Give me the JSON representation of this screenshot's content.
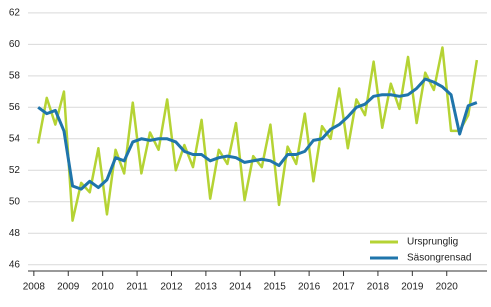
{
  "chart_data": {
    "type": "line",
    "x": [
      2008.125,
      2008.375,
      2008.625,
      2008.875,
      2009.125,
      2009.375,
      2009.625,
      2009.875,
      2010.125,
      2010.375,
      2010.625,
      2010.875,
      2011.125,
      2011.375,
      2011.625,
      2011.875,
      2012.125,
      2012.375,
      2012.625,
      2012.875,
      2013.125,
      2013.375,
      2013.625,
      2013.875,
      2014.125,
      2014.375,
      2014.625,
      2014.875,
      2015.125,
      2015.375,
      2015.625,
      2015.875,
      2016.125,
      2016.375,
      2016.625,
      2016.875,
      2017.125,
      2017.375,
      2017.625,
      2017.875,
      2018.125,
      2018.375,
      2018.625,
      2018.875,
      2019.125,
      2019.375,
      2019.625,
      2019.875,
      2020.125,
      2020.375,
      2020.625,
      2020.875
    ],
    "series": [
      {
        "name": "Ursprunglig",
        "color": "#b5d334",
        "values": [
          53.7,
          56.6,
          54.9,
          57.0,
          48.8,
          51.2,
          50.6,
          53.4,
          49.2,
          53.3,
          51.8,
          56.3,
          51.8,
          54.4,
          53.3,
          56.5,
          52.0,
          53.6,
          52.2,
          55.2,
          50.2,
          53.3,
          52.4,
          55.0,
          50.1,
          52.9,
          52.2,
          54.9,
          49.8,
          53.5,
          52.4,
          55.6,
          51.3,
          54.8,
          54.0,
          57.2,
          53.4,
          56.5,
          55.5,
          58.9,
          54.7,
          57.5,
          55.9,
          59.2,
          55.0,
          58.2,
          57.1,
          59.8,
          54.5,
          54.5,
          55.5,
          59.0
        ]
      },
      {
        "name": "Säsongrensad",
        "color": "#1f75ab",
        "values": [
          56.0,
          55.6,
          55.8,
          54.5,
          51.0,
          50.8,
          51.3,
          50.9,
          51.4,
          52.8,
          52.6,
          53.8,
          54.0,
          53.9,
          54.0,
          54.0,
          53.8,
          53.2,
          53.0,
          53.0,
          52.6,
          52.8,
          52.9,
          52.8,
          52.5,
          52.6,
          52.7,
          52.6,
          52.3,
          53.0,
          53.0,
          53.2,
          53.9,
          54.0,
          54.6,
          54.9,
          55.4,
          56.0,
          56.2,
          56.7,
          56.8,
          56.8,
          56.7,
          56.8,
          57.2,
          57.8,
          57.6,
          57.3,
          56.8,
          54.3,
          56.1,
          56.3
        ]
      }
    ],
    "xlim": [
      2007.83,
      2021.17
    ],
    "xticks": [
      2008,
      2009,
      2010,
      2011,
      2012,
      2013,
      2014,
      2015,
      2016,
      2017,
      2018,
      2019,
      2020
    ],
    "ylim": [
      45.6,
      62.5
    ],
    "yticks": [
      46,
      48,
      50,
      52,
      54,
      56,
      58,
      60,
      62
    ],
    "grid": true,
    "legend": "lower right"
  }
}
